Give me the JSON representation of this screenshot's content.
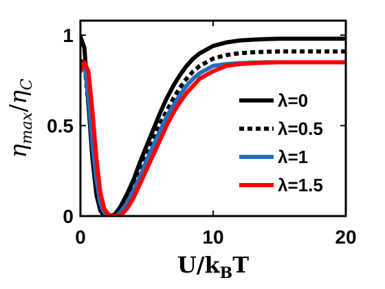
{
  "chart_data": {
    "type": "line",
    "title": "",
    "xlabel": {
      "main": "U/k",
      "sub": "B",
      "tail": "T"
    },
    "ylabel": {
      "eta": "η",
      "sub_top": "max",
      "slash": "/",
      "sub_bottom": "C"
    },
    "xlim": [
      0,
      20
    ],
    "ylim": [
      0,
      1.08
    ],
    "xticks": [
      0,
      10,
      20
    ],
    "yticks": [
      0,
      0.5,
      1
    ],
    "xtick_labels": [
      "0",
      "10",
      "20"
    ],
    "ytick_labels": [
      "0",
      "0.5",
      "1"
    ],
    "grid": false,
    "legend_position": "right",
    "series": [
      {
        "name": "λ=0",
        "color": "#000000",
        "style": "solid",
        "x": [
          0,
          0.3,
          0.6,
          0.9,
          1.2,
          1.5,
          1.8,
          2.0,
          2.3,
          2.6,
          3.0,
          3.5,
          4.0,
          4.5,
          5,
          5.5,
          6,
          6.5,
          7,
          7.5,
          8,
          8.5,
          9,
          9.5,
          10,
          11,
          12,
          13,
          14,
          15,
          16,
          17,
          18,
          19,
          20
        ],
        "y": [
          0.99,
          0.93,
          0.62,
          0.32,
          0.12,
          0.03,
          0.0,
          0.0,
          0.0,
          0.01,
          0.05,
          0.12,
          0.2,
          0.3,
          0.39,
          0.48,
          0.57,
          0.65,
          0.72,
          0.78,
          0.83,
          0.87,
          0.9,
          0.92,
          0.94,
          0.96,
          0.97,
          0.975,
          0.978,
          0.98,
          0.98,
          0.98,
          0.98,
          0.98,
          0.98
        ]
      },
      {
        "name": "λ=0.5",
        "color": "#000000",
        "style": "dotted",
        "x": [
          0,
          0.3,
          0.6,
          0.9,
          1.2,
          1.5,
          1.8,
          2.1,
          2.4,
          2.7,
          3.0,
          3.5,
          4.0,
          4.5,
          5,
          5.5,
          6,
          6.5,
          7,
          7.5,
          8,
          8.5,
          9,
          9.5,
          10,
          11,
          12,
          13,
          14,
          15,
          16,
          17,
          18,
          19,
          20
        ],
        "y": [
          0.86,
          0.84,
          0.62,
          0.36,
          0.16,
          0.05,
          0.01,
          0.0,
          0.0,
          0.0,
          0.03,
          0.09,
          0.16,
          0.25,
          0.34,
          0.42,
          0.51,
          0.58,
          0.65,
          0.71,
          0.76,
          0.8,
          0.83,
          0.85,
          0.87,
          0.89,
          0.9,
          0.905,
          0.908,
          0.91,
          0.91,
          0.91,
          0.91,
          0.91,
          0.91
        ]
      },
      {
        "name": "λ=1",
        "color": "#1f6fbf",
        "style": "solid",
        "x": [
          0,
          0.3,
          0.6,
          0.9,
          1.2,
          1.5,
          1.8,
          2.1,
          2.4,
          2.7,
          3.0,
          3.5,
          4.0,
          4.5,
          5,
          5.5,
          6,
          6.5,
          7,
          7.5,
          8,
          8.5,
          9,
          9.5,
          10,
          11,
          12,
          13,
          14,
          15,
          16,
          17,
          18,
          19,
          20
        ],
        "y": [
          0.84,
          0.84,
          0.66,
          0.4,
          0.2,
          0.07,
          0.02,
          0.0,
          0.0,
          0.0,
          0.02,
          0.07,
          0.14,
          0.22,
          0.31,
          0.39,
          0.47,
          0.55,
          0.61,
          0.67,
          0.72,
          0.76,
          0.79,
          0.81,
          0.83,
          0.84,
          0.845,
          0.848,
          0.85,
          0.85,
          0.85,
          0.85,
          0.85,
          0.85,
          0.85
        ]
      },
      {
        "name": "λ=1.5",
        "color": "#ff0000",
        "style": "solid",
        "x": [
          0,
          0.3,
          0.6,
          0.9,
          1.2,
          1.5,
          1.8,
          2.1,
          2.4,
          2.7,
          3.0,
          3.5,
          4.0,
          4.5,
          5,
          5.5,
          6,
          6.5,
          7,
          7.5,
          8,
          8.5,
          9,
          9.5,
          10,
          11,
          12,
          13,
          14,
          15,
          16,
          17,
          18,
          19,
          20
        ],
        "y": [
          0.8,
          0.85,
          0.8,
          0.58,
          0.32,
          0.13,
          0.04,
          0.01,
          0.0,
          0.0,
          0.0,
          0.04,
          0.1,
          0.18,
          0.26,
          0.34,
          0.42,
          0.5,
          0.57,
          0.63,
          0.68,
          0.72,
          0.76,
          0.78,
          0.8,
          0.83,
          0.84,
          0.845,
          0.848,
          0.85,
          0.85,
          0.85,
          0.85,
          0.85,
          0.85
        ]
      }
    ]
  }
}
